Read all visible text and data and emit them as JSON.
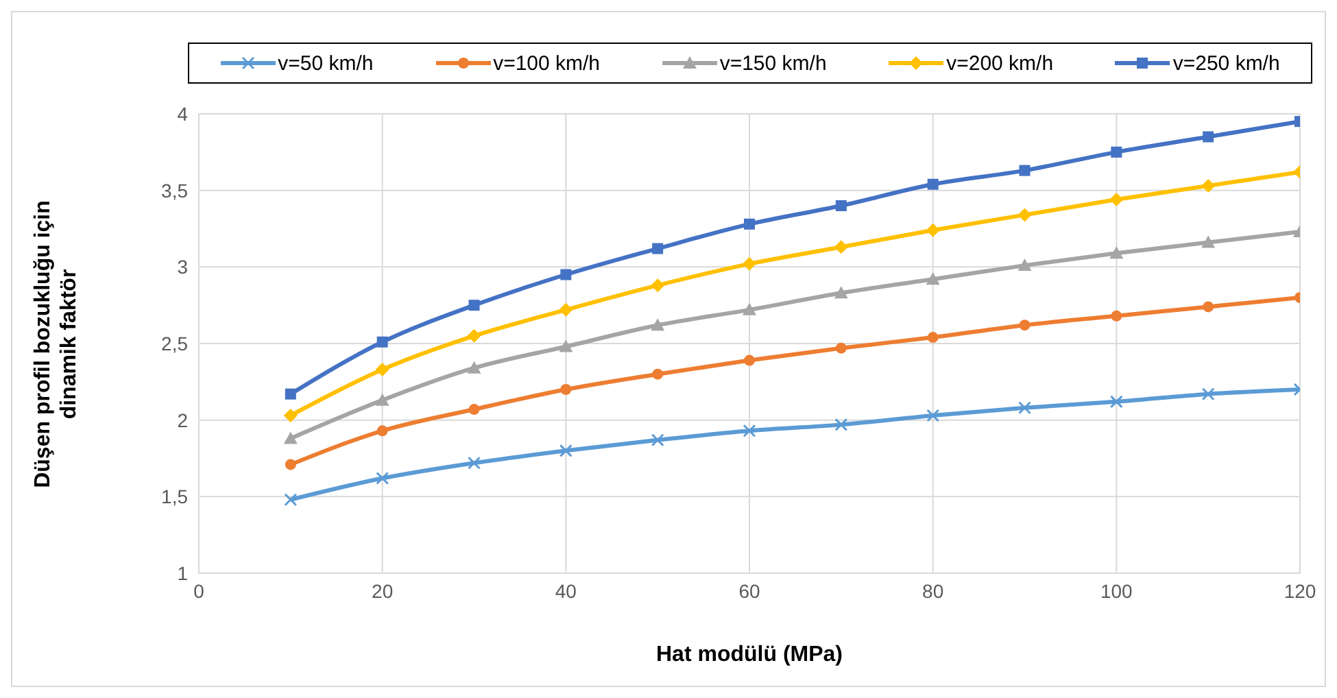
{
  "chart_data": {
    "type": "line",
    "xlabel": "Hat modülü (MPa)",
    "ylabel": "Düşen profil bozukluğu  için\ndinamik faktör",
    "x": [
      10,
      20,
      30,
      40,
      50,
      60,
      70,
      80,
      90,
      100,
      110,
      120
    ],
    "series": [
      {
        "name": "v=50 km/h",
        "color": "#5b9bd5",
        "marker": "cross",
        "values": [
          1.48,
          1.62,
          1.72,
          1.8,
          1.87,
          1.93,
          1.97,
          2.03,
          2.08,
          2.12,
          2.17,
          2.2
        ]
      },
      {
        "name": "v=100 km/h",
        "color": "#ed7d31",
        "marker": "circle",
        "values": [
          1.71,
          1.93,
          2.07,
          2.2,
          2.3,
          2.39,
          2.47,
          2.54,
          2.62,
          2.68,
          2.74,
          2.8
        ]
      },
      {
        "name": "v=150 km/h",
        "color": "#a5a5a5",
        "marker": "triangle",
        "values": [
          1.88,
          2.13,
          2.34,
          2.48,
          2.62,
          2.72,
          2.83,
          2.92,
          3.01,
          3.09,
          3.16,
          3.23
        ]
      },
      {
        "name": "v=200 km/h",
        "color": "#ffc000",
        "marker": "diamond",
        "values": [
          2.03,
          2.33,
          2.55,
          2.72,
          2.88,
          3.02,
          3.13,
          3.24,
          3.34,
          3.44,
          3.53,
          3.62
        ]
      },
      {
        "name": "v=250 km/h",
        "color": "#4472c4",
        "marker": "square",
        "values": [
          2.17,
          2.51,
          2.75,
          2.95,
          3.12,
          3.28,
          3.4,
          3.54,
          3.63,
          3.75,
          3.85,
          3.95
        ]
      }
    ],
    "xlim": [
      0,
      120
    ],
    "xticks": [
      0,
      20,
      40,
      60,
      80,
      100,
      120
    ],
    "ylim": [
      1,
      4
    ],
    "yticks": [
      1,
      {
        "value": 1.5,
        "label": "1,5"
      },
      2,
      {
        "value": 2.5,
        "label": "2,5"
      },
      3,
      {
        "value": 3.5,
        "label": "3,5"
      },
      4
    ],
    "grid": true,
    "legend": "top",
    "line_style": "solid"
  }
}
